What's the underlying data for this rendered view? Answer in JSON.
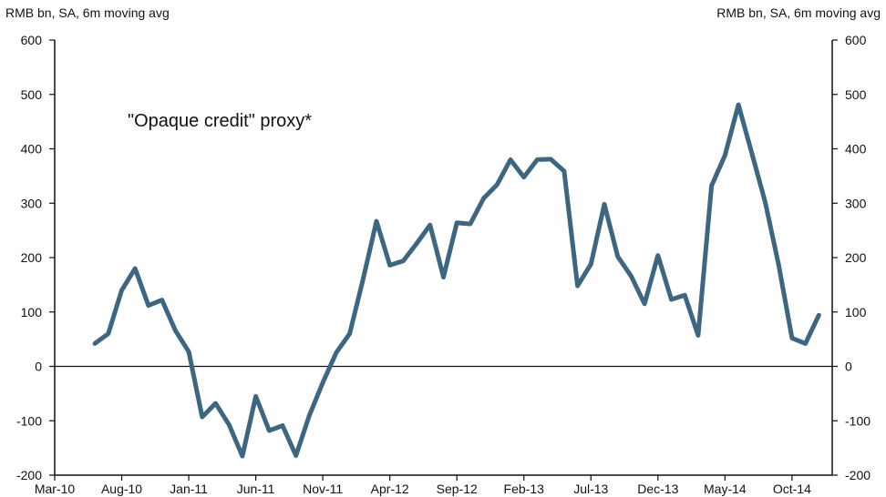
{
  "chart_data": {
    "type": "line",
    "title": "",
    "ylabel_left": "RMB bn, SA, 6m moving avg",
    "ylabel_right": "RMB bn, SA, 6m moving avg",
    "ylim": [
      -200,
      600
    ],
    "yticks": [
      -200,
      -100,
      0,
      100,
      200,
      300,
      400,
      500,
      600
    ],
    "ytick_labels": [
      "-200",
      "-100",
      "0",
      "100",
      "200",
      "300",
      "400",
      "500",
      "600"
    ],
    "xtick_labels": [
      "Mar-10",
      "Aug-10",
      "Jan-11",
      "Jun-11",
      "Nov-11",
      "Apr-12",
      "Sep-12",
      "Feb-13",
      "Jul-13",
      "Dec-13",
      "May-14",
      "Oct-14"
    ],
    "x_start": "Mar-10",
    "x_end": "Jan-15",
    "annotation": "\"Opaque credit\" proxy*",
    "line_color": "#3d6680",
    "zero_line": true,
    "grid": false,
    "series": [
      {
        "name": "",
        "x": [
          "Jun-10",
          "Jul-10",
          "Aug-10",
          "Sep-10",
          "Oct-10",
          "Nov-10",
          "Dec-10",
          "Jan-11",
          "Feb-11",
          "Mar-11",
          "Apr-11",
          "May-11",
          "Jun-11",
          "Jul-11",
          "Aug-11",
          "Sep-11",
          "Oct-11",
          "Nov-11",
          "Dec-11",
          "Jan-12",
          "Feb-12",
          "Mar-12",
          "Apr-12",
          "May-12",
          "Jun-12",
          "Jul-12",
          "Aug-12",
          "Sep-12",
          "Oct-12",
          "Nov-12",
          "Dec-12",
          "Jan-13",
          "Feb-13",
          "Mar-13",
          "Apr-13",
          "May-13",
          "Jun-13",
          "Jul-13",
          "Aug-13",
          "Sep-13",
          "Oct-13",
          "Nov-13",
          "Dec-13",
          "Jan-14",
          "Feb-14",
          "Mar-14",
          "Apr-14",
          "May-14",
          "Jun-14",
          "Jul-14",
          "Aug-14",
          "Sep-14",
          "Oct-14",
          "Nov-14",
          "Dec-14"
        ],
        "values": [
          42,
          60,
          140,
          180,
          112,
          122,
          66,
          27,
          -93,
          -68,
          -107,
          -165,
          -55,
          -118,
          -109,
          -164,
          -90,
          -30,
          25,
          60,
          160,
          267,
          186,
          194,
          226,
          260,
          164,
          264,
          262,
          309,
          334,
          380,
          348,
          380,
          381,
          359,
          148,
          188,
          298,
          202,
          166,
          115,
          204,
          123,
          131,
          57,
          332,
          388,
          481,
          392,
          302,
          187,
          52,
          42,
          94
        ]
      }
    ]
  }
}
